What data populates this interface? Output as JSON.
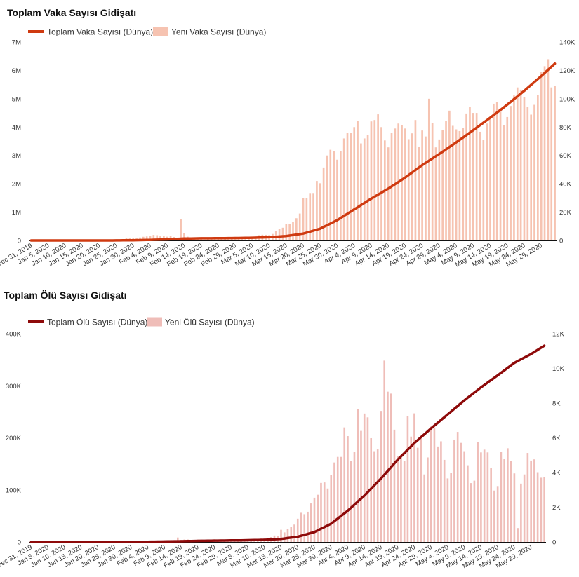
{
  "chart_data": [
    {
      "type": "bar+line",
      "title": "Toplam Vaka Sayısı Gidişatı",
      "start_date": "2019-12-31",
      "days": 155,
      "x_tick_every_days": 5,
      "x_tick_labels": [
        "Dec 31, 2019",
        "Jan 5, 2020",
        "Jan 10, 2020",
        "Jan 15, 2020",
        "Jan 20, 2020",
        "Jan 25, 2020",
        "Jan 30, 2020",
        "Feb 4, 2020",
        "Feb 9, 2020",
        "Feb 14, 2020",
        "Feb 19, 2020",
        "Feb 24, 2020",
        "Feb 29, 2020",
        "Mar 5, 2020",
        "Mar 10, 2020",
        "Mar 15, 2020",
        "Mar 20, 2020",
        "Mar 25, 2020",
        "Mar 30, 2020",
        "Apr 4, 2020",
        "Apr 9, 2020",
        "Apr 14, 2020",
        "Apr 19, 2020",
        "Apr 24, 2020",
        "Apr 29, 2020",
        "May 4, 2020",
        "May 9, 2020",
        "May 14, 2020",
        "May 19, 2020",
        "May 24, 2020",
        "May 29, 2020"
      ],
      "y_left": {
        "min": 0,
        "max": 7000000,
        "ticks": [
          "0",
          "1M",
          "2M",
          "3M",
          "4M",
          "5M",
          "6M",
          "7M"
        ]
      },
      "y_right": {
        "min": 0,
        "max": 140000,
        "ticks": [
          "0",
          "20K",
          "40K",
          "60K",
          "80K",
          "100K",
          "120K",
          "140K"
        ]
      },
      "grid": false,
      "legend_position": "top-left",
      "series": [
        {
          "name": "Toplam Vaka Sayısı (Dünya)",
          "kind": "line",
          "axis": "left",
          "color": "#cf3a10",
          "checkpoint_days": [
            0,
            5,
            10,
            15,
            20,
            25,
            30,
            35,
            40,
            45,
            50,
            55,
            60,
            65,
            70,
            75,
            80,
            85,
            90,
            95,
            100,
            105,
            110,
            115,
            120,
            125,
            130,
            135,
            140,
            145,
            150,
            154
          ],
          "values": [
            27,
            60,
            60,
            60,
            280,
            1400,
            7800,
            20400,
            37300,
            66900,
            75500,
            79400,
            85600,
            95500,
            113900,
            156400,
            242400,
            416700,
            716200,
            1098000,
            1475000,
            1830000,
            2220000,
            2660000,
            3050000,
            3460000,
            3890000,
            4330000,
            4790000,
            5280000,
            5800000,
            6240000
          ]
        },
        {
          "name": "Yeni Vaka Sayısı (Dünya)",
          "kind": "bar",
          "axis": "right",
          "color": "#f6c3b1",
          "values": [
            27,
            0,
            0,
            17,
            0,
            15,
            0,
            0,
            0,
            0,
            0,
            0,
            0,
            0,
            0,
            0,
            0,
            4,
            17,
            136,
            19,
            151,
            140,
            97,
            259,
            441,
            665,
            787,
            1753,
            1466,
            1737,
            1982,
            2102,
            2590,
            2829,
            3235,
            3884,
            3697,
            3151,
            3387,
            2653,
            3009,
            2486,
            2015,
            15141,
            5126,
            2663,
            2097,
            2132,
            2052,
            1877,
            558,
            1070,
            953,
            1114,
            1007,
            779,
            1131,
            1278,
            1372,
            1840,
            1822,
            2200,
            1877,
            2371,
            2627,
            2825,
            3738,
            4032,
            3988,
            3800,
            4600,
            6600,
            8300,
            9000,
            11500,
            11500,
            12900,
            15700,
            19000,
            30000,
            30000,
            33500,
            33500,
            42000,
            40400,
            51500,
            60000,
            64000,
            63000,
            57000,
            63000,
            72000,
            76000,
            76000,
            80000,
            84500,
            68500,
            72000,
            74600,
            84000,
            85000,
            89000,
            80000,
            70600,
            65700,
            76000,
            79000,
            82500,
            81300,
            79000,
            71500,
            75600,
            85000,
            66300,
            77600,
            73400,
            100000,
            82800,
            65700,
            71300,
            77900,
            84500,
            91600,
            80900,
            78400,
            77200,
            79200,
            89600,
            94000,
            90000,
            90000,
            76700,
            71000,
            82500,
            86100,
            96500,
            97700,
            93200,
            81200,
            87100,
            94900,
            102300,
            108000,
            106400,
            101000,
            94000,
            88800,
            95700,
            102600,
            118800,
            123000,
            127900,
            108000,
            108900
          ]
        }
      ]
    },
    {
      "type": "bar+line",
      "title": "Toplam Ölü Sayısı Gidişatı",
      "start_date": "2019-12-31",
      "days": 155,
      "x_tick_every_days": 5,
      "x_tick_labels": [
        "Dec 31, 2019",
        "Jan 5, 2020",
        "Jan 10, 2020",
        "Jan 15, 2020",
        "Jan 20, 2020",
        "Jan 25, 2020",
        "Jan 30, 2020",
        "Feb 4, 2020",
        "Feb 9, 2020",
        "Feb 14, 2020",
        "Feb 19, 2020",
        "Feb 24, 2020",
        "Feb 29, 2020",
        "Mar 5, 2020",
        "Mar 10, 2020",
        "Mar 15, 2020",
        "Mar 20, 2020",
        "Mar 25, 2020",
        "Mar 30, 2020",
        "Apr 4, 2020",
        "Apr 9, 2020",
        "Apr 14, 2020",
        "Apr 19, 2020",
        "Apr 24, 2020",
        "Apr 29, 2020",
        "May 4, 2020",
        "May 9, 2020",
        "May 14, 2020",
        "May 19, 2020",
        "May 24, 2020",
        "May 29, 2020"
      ],
      "y_left": {
        "min": 0,
        "max": 400000,
        "ticks": [
          "0",
          "100K",
          "200K",
          "300K",
          "400K"
        ]
      },
      "y_right": {
        "min": 0,
        "max": 12000,
        "ticks": [
          "0",
          "2K",
          "4K",
          "6K",
          "8K",
          "10K",
          "12K"
        ]
      },
      "grid": false,
      "legend_position": "top-left",
      "series": [
        {
          "name": "Toplam Ölü Sayısı (Dünya)",
          "kind": "line",
          "axis": "left",
          "color": "#8e0a0a",
          "checkpoint_days": [
            0,
            5,
            10,
            15,
            20,
            25,
            30,
            35,
            40,
            45,
            50,
            55,
            60,
            65,
            70,
            75,
            80,
            85,
            90,
            95,
            100,
            105,
            110,
            115,
            120,
            125,
            130,
            135,
            140,
            145,
            150,
            154
          ],
          "values": [
            0,
            0,
            0,
            0,
            3,
            41,
            170,
            430,
            810,
            1380,
            2000,
            2500,
            2900,
            3300,
            4000,
            5800,
            10000,
            19000,
            35000,
            60000,
            89000,
            122000,
            158000,
            190000,
            218000,
            245000,
            272000,
            297000,
            320000,
            344000,
            361000,
            377000
          ]
        },
        {
          "name": "Yeni Ölü Sayısı (Dünya)",
          "kind": "bar",
          "axis": "right",
          "color": "#efbdb8",
          "values": [
            0,
            0,
            0,
            0,
            0,
            0,
            0,
            0,
            0,
            0,
            1,
            0,
            0,
            0,
            0,
            0,
            0,
            1,
            0,
            0,
            3,
            0,
            11,
            0,
            8,
            16,
            15,
            24,
            26,
            26,
            38,
            43,
            46,
            45,
            57,
            64,
            66,
            73,
            73,
            86,
            89,
            97,
            108,
            97,
            254,
            121,
            140,
            142,
            106,
            98,
            139,
            115,
            118,
            109,
            97,
            150,
            71,
            52,
            29,
            44,
            37,
            58,
            67,
            81,
            84,
            98,
            110,
            122,
            158,
            200,
            240,
            240,
            280,
            370,
            330,
            700,
            550,
            750,
            880,
            1000,
            1340,
            1680,
            1600,
            1740,
            2220,
            2550,
            2720,
            3400,
            3430,
            3080,
            3860,
            4580,
            4900,
            4900,
            6600,
            6100,
            4650,
            5200,
            7640,
            6400,
            7400,
            7180,
            5980,
            5230,
            5330,
            7550,
            10450,
            8660,
            8550,
            6470,
            4930,
            4870,
            4660,
            7250,
            6070,
            7410,
            5430,
            5940,
            3890,
            4870,
            6650,
            6600,
            5500,
            5800,
            4730,
            3660,
            3970,
            5900,
            6340,
            5710,
            5230,
            4420,
            3390,
            3530,
            5740,
            5160,
            5320,
            5160,
            4260,
            2960,
            3220,
            5200,
            4770,
            5400,
            4660,
            3950,
            800,
            3360,
            3890,
            5130,
            4690,
            4760,
            4020,
            3700,
            3730
          ]
        }
      ]
    }
  ]
}
